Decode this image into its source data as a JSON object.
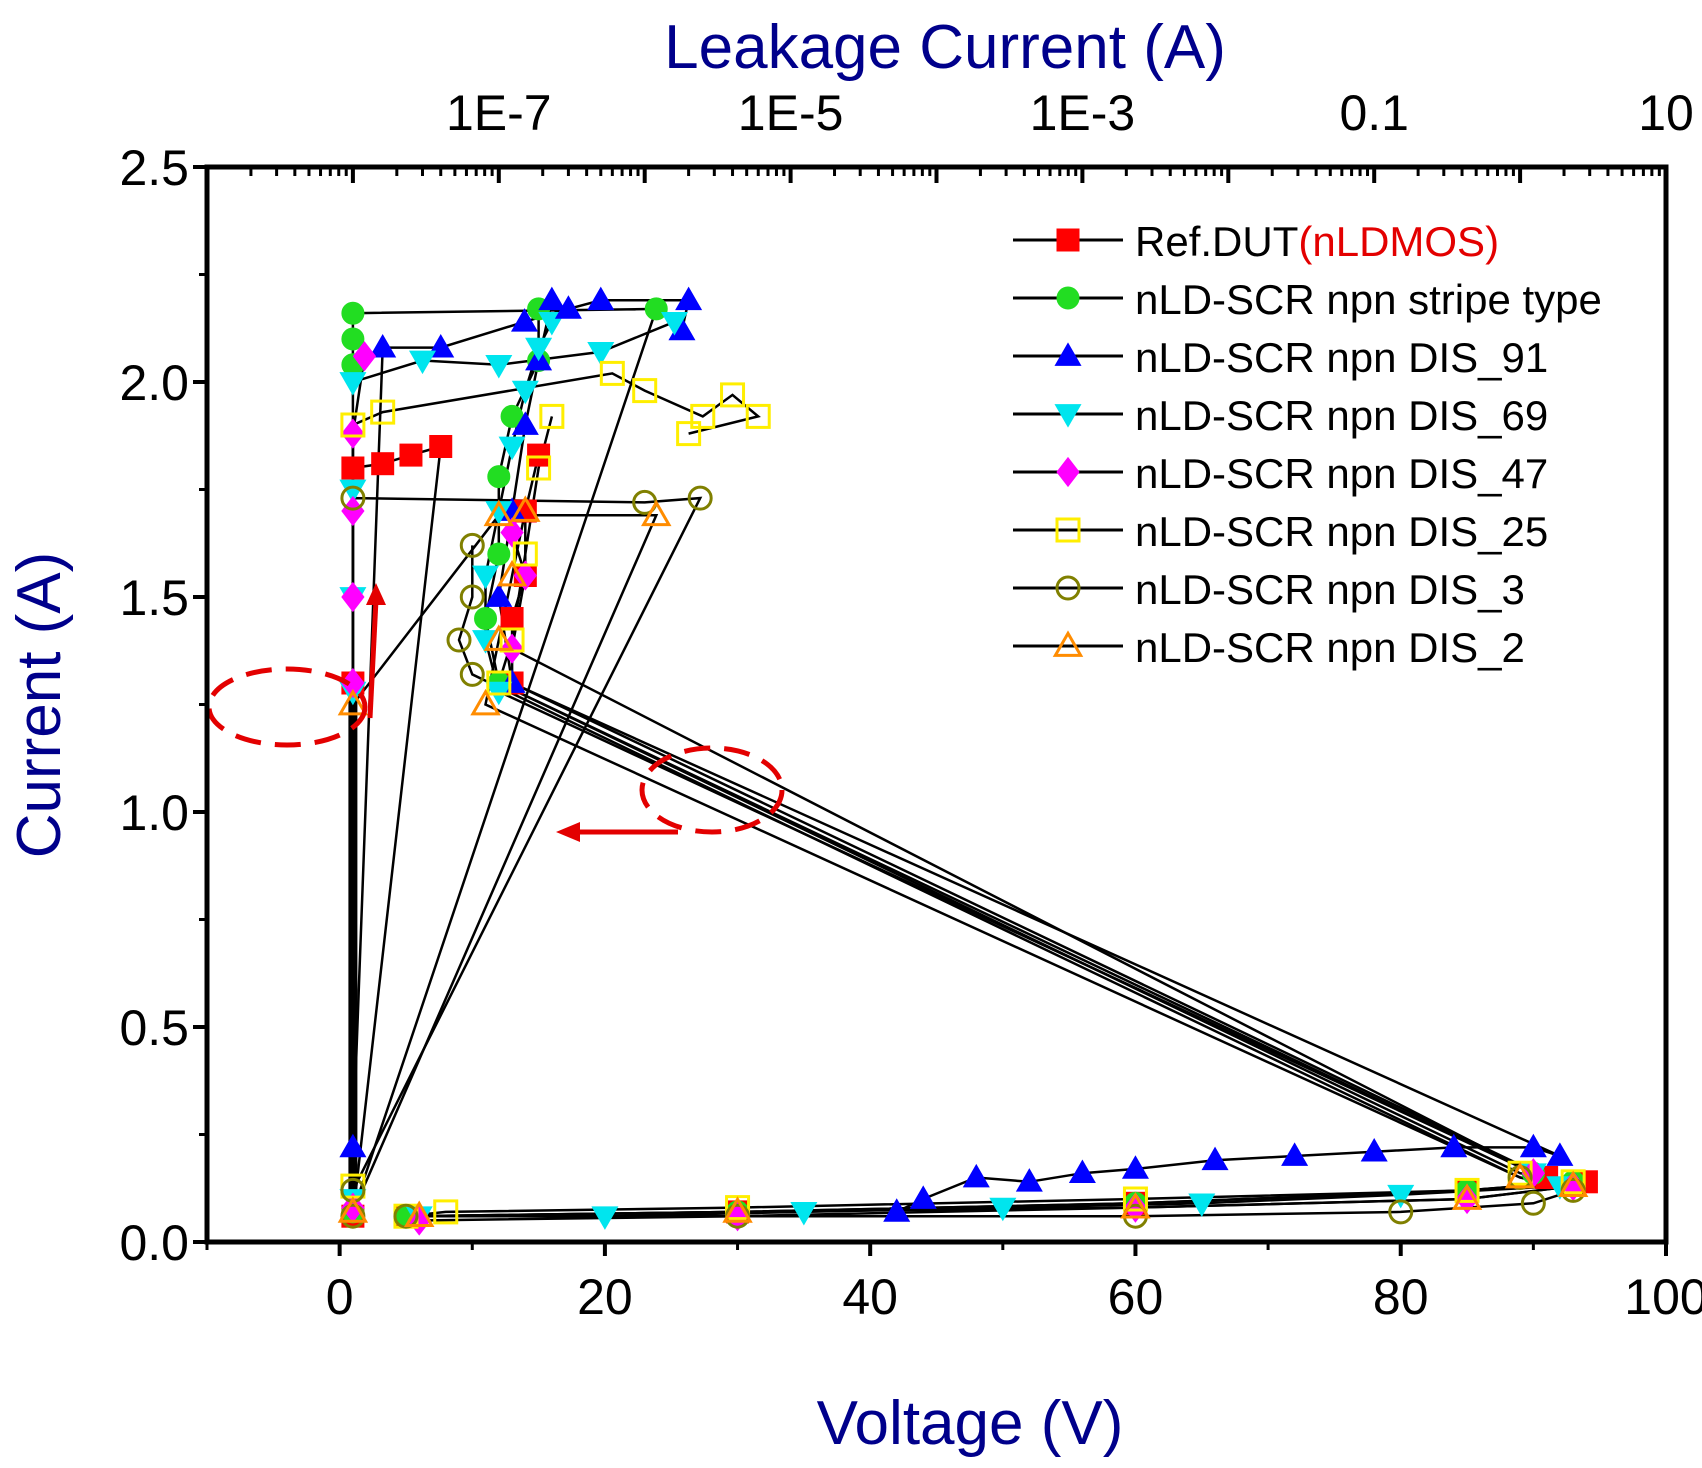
{
  "chart_data": {
    "type": "scatter",
    "title": "",
    "xlabel": "Voltage (V)",
    "ylabel": "Current (A)",
    "top_xlabel": "Leakage Current (A)",
    "xlim": [
      -10,
      100
    ],
    "ylim": [
      0,
      2.5
    ],
    "x_ticks": [
      "0",
      "20",
      "40",
      "60",
      "80",
      "100"
    ],
    "y_ticks": [
      "0.0",
      "0.5",
      "1.0",
      "1.5",
      "2.0",
      "2.5"
    ],
    "top_ticks": [
      "1E-7",
      "1E-5",
      "1E-3",
      "0.1",
      "10"
    ],
    "top_log_range": [
      -9,
      1
    ],
    "legend_position": "top-right",
    "colors": {
      "axis_title": "#00008b",
      "annotation": "#e30000"
    },
    "series": [
      {
        "name": "Ref.DUT",
        "name_suffix": "(nLDMOS)",
        "marker": "square",
        "filled": true,
        "color": "#ff0000",
        "iv": [
          [
            5,
            0.06
          ],
          [
            30,
            0.07
          ],
          [
            60,
            0.09
          ],
          [
            85,
            0.12
          ],
          [
            94,
            0.14
          ],
          [
            91,
            0.15
          ],
          [
            13,
            1.3
          ],
          [
            13,
            1.45
          ],
          [
            14,
            1.55
          ],
          [
            14,
            1.7
          ],
          [
            15,
            1.83
          ]
        ],
        "leakage": [
          [
            1e-08,
            1.8
          ],
          [
            1.6e-08,
            1.81
          ],
          [
            2.5e-08,
            1.83
          ],
          [
            4e-08,
            1.85
          ],
          [
            1e-08,
            0.06
          ],
          [
            1e-08,
            1.3
          ]
        ]
      },
      {
        "name": "nLD-SCR npn stripe type",
        "marker": "circle",
        "filled": true,
        "color": "#22dd22",
        "iv": [
          [
            5,
            0.06
          ],
          [
            30,
            0.07
          ],
          [
            60,
            0.09
          ],
          [
            85,
            0.12
          ],
          [
            93,
            0.14
          ],
          [
            90,
            0.16
          ],
          [
            12,
            1.3
          ],
          [
            11,
            1.45
          ],
          [
            12,
            1.6
          ],
          [
            12,
            1.78
          ],
          [
            13,
            1.92
          ],
          [
            15,
            2.05
          ],
          [
            15,
            2.17
          ]
        ],
        "leakage": [
          [
            1e-08,
            2.04
          ],
          [
            1e-08,
            2.1
          ],
          [
            1e-08,
            2.16
          ],
          [
            1.2e-06,
            2.17
          ],
          [
            1e-08,
            0.07
          ]
        ]
      },
      {
        "name": "nLD-SCR npn DIS_91",
        "marker": "triangle-up",
        "filled": true,
        "color": "#0000ff",
        "iv": [
          [
            42,
            0.07
          ],
          [
            44,
            0.1
          ],
          [
            48,
            0.15
          ],
          [
            52,
            0.14
          ],
          [
            56,
            0.16
          ],
          [
            60,
            0.17
          ],
          [
            66,
            0.19
          ],
          [
            72,
            0.2
          ],
          [
            78,
            0.21
          ],
          [
            84,
            0.22
          ],
          [
            90,
            0.22
          ],
          [
            92,
            0.2
          ],
          [
            13,
            1.3
          ],
          [
            12,
            1.5
          ],
          [
            13,
            1.7
          ],
          [
            14,
            1.9
          ],
          [
            15,
            2.05
          ],
          [
            16,
            2.19
          ]
        ],
        "leakage": [
          [
            1e-08,
            0.22
          ],
          [
            1.6e-08,
            2.08
          ],
          [
            4e-08,
            2.08
          ],
          [
            1.5e-07,
            2.14
          ],
          [
            3e-07,
            2.17
          ],
          [
            5e-07,
            2.19
          ],
          [
            2e-06,
            2.19
          ],
          [
            1.8e-06,
            2.12
          ]
        ]
      },
      {
        "name": "nLD-SCR npn DIS_69",
        "marker": "triangle-down",
        "filled": true,
        "color": "#00e5ee",
        "iv": [
          [
            6,
            0.06
          ],
          [
            20,
            0.06
          ],
          [
            35,
            0.07
          ],
          [
            50,
            0.08
          ],
          [
            65,
            0.09
          ],
          [
            80,
            0.11
          ],
          [
            92,
            0.13
          ],
          [
            90,
            0.16
          ],
          [
            12,
            1.28
          ],
          [
            11,
            1.4
          ],
          [
            11,
            1.55
          ],
          [
            12,
            1.7
          ],
          [
            13,
            1.85
          ],
          [
            14,
            1.98
          ],
          [
            15,
            2.08
          ],
          [
            16,
            2.14
          ]
        ],
        "leakage": [
          [
            1e-08,
            0.1
          ],
          [
            1e-08,
            1.28
          ],
          [
            1e-08,
            1.5
          ],
          [
            1e-08,
            1.75
          ],
          [
            1e-08,
            2.0
          ],
          [
            3e-08,
            2.05
          ],
          [
            1e-07,
            2.04
          ],
          [
            5e-07,
            2.07
          ],
          [
            1.6e-06,
            2.14
          ]
        ]
      },
      {
        "name": "nLD-SCR npn DIS_47",
        "marker": "diamond",
        "filled": true,
        "color": "#ff00ff",
        "iv": [
          [
            6,
            0.05
          ],
          [
            30,
            0.06
          ],
          [
            60,
            0.08
          ],
          [
            85,
            0.1
          ],
          [
            93,
            0.13
          ],
          [
            90,
            0.16
          ],
          [
            13,
            1.38
          ],
          [
            14,
            1.55
          ],
          [
            13,
            1.65
          ]
        ],
        "leakage": [
          [
            1e-08,
            0.08
          ],
          [
            1e-08,
            1.3
          ],
          [
            1e-08,
            1.5
          ],
          [
            1e-08,
            1.7
          ],
          [
            1e-08,
            1.88
          ],
          [
            1.2e-08,
            2.06
          ]
        ]
      },
      {
        "name": "nLD-SCR npn DIS_25",
        "marker": "square",
        "filled": false,
        "color": "#ffee00",
        "iv": [
          [
            5,
            0.06
          ],
          [
            8,
            0.07
          ],
          [
            30,
            0.08
          ],
          [
            60,
            0.1
          ],
          [
            85,
            0.12
          ],
          [
            93,
            0.14
          ],
          [
            89,
            0.16
          ],
          [
            12,
            1.3
          ],
          [
            13,
            1.4
          ],
          [
            14,
            1.6
          ],
          [
            15,
            1.8
          ],
          [
            16,
            1.92
          ]
        ],
        "leakage": [
          [
            1e-08,
            0.13
          ],
          [
            1e-08,
            1.9
          ],
          [
            1.6e-08,
            1.93
          ],
          [
            6e-07,
            2.02
          ],
          [
            1e-06,
            1.98
          ],
          [
            2.5e-06,
            1.92
          ],
          [
            4e-06,
            1.97
          ],
          [
            6e-06,
            1.92
          ],
          [
            2e-06,
            1.88
          ]
        ]
      },
      {
        "name": "nLD-SCR npn DIS_3",
        "marker": "circle",
        "filled": false,
        "color": "#808000",
        "iv": [
          [
            5,
            0.06
          ],
          [
            30,
            0.06
          ],
          [
            60,
            0.06
          ],
          [
            80,
            0.07
          ],
          [
            90,
            0.09
          ],
          [
            93,
            0.12
          ],
          [
            89,
            0.15
          ],
          [
            10,
            1.32
          ],
          [
            9,
            1.4
          ],
          [
            10,
            1.5
          ],
          [
            10,
            1.62
          ]
        ],
        "leakage": [
          [
            1e-08,
            0.06
          ],
          [
            1e-08,
            1.73
          ],
          [
            1e-06,
            1.72
          ],
          [
            2.4e-06,
            1.73
          ],
          [
            1e-08,
            0.12
          ]
        ]
      },
      {
        "name": "nLD-SCR npn DIS_2",
        "marker": "triangle-up",
        "filled": false,
        "color": "#ff8c00",
        "iv": [
          [
            6,
            0.06
          ],
          [
            30,
            0.07
          ],
          [
            60,
            0.08
          ],
          [
            85,
            0.1
          ],
          [
            93,
            0.13
          ],
          [
            89,
            0.15
          ],
          [
            11,
            1.25
          ],
          [
            12,
            1.4
          ],
          [
            13,
            1.55
          ],
          [
            14,
            1.7
          ]
        ],
        "leakage": [
          [
            1e-08,
            1.25
          ],
          [
            1e-07,
            1.69
          ],
          [
            1.2e-06,
            1.69
          ],
          [
            1e-08,
            0.07
          ]
        ]
      }
    ]
  }
}
